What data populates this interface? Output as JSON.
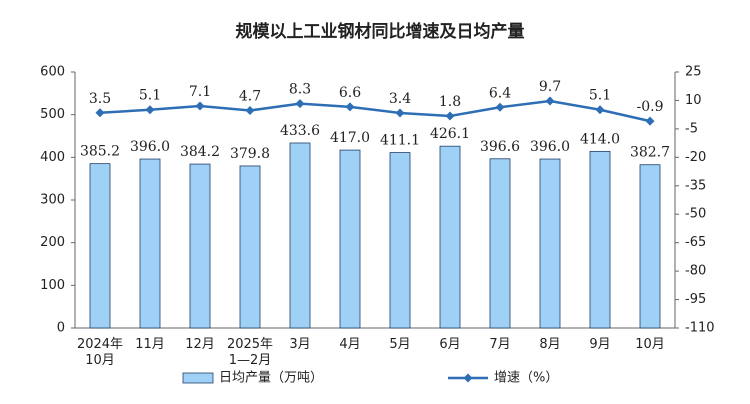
{
  "chart_data": {
    "type": "bar-line",
    "title": "规模以上工业钢材同比增速及日均产量",
    "categories": [
      "2024年\n10月",
      "11月",
      "12月",
      "2025年\n1—2月",
      "3月",
      "4月",
      "5月",
      "6月",
      "7月",
      "8月",
      "9月",
      "10月"
    ],
    "series": [
      {
        "name": "日均产量（万吨）",
        "type": "bar",
        "color": "#9fd0f5",
        "border": "#1f3f66",
        "values": [
          385.2,
          396.0,
          384.2,
          379.8,
          433.6,
          417.0,
          411.1,
          426.1,
          396.6,
          396.0,
          414.0,
          382.7
        ],
        "value_labels": [
          "385.2",
          "396.0",
          "384.2",
          "379.8",
          "433.6",
          "417.0",
          "411.1",
          "426.1",
          "396.6",
          "396.0",
          "414.0",
          "382.7"
        ]
      },
      {
        "name": "增速（%）",
        "type": "line",
        "axis": "y2",
        "color": "#2e6eb5",
        "values": [
          3.5,
          5.1,
          7.1,
          4.7,
          8.3,
          6.6,
          3.4,
          1.8,
          6.4,
          9.7,
          5.1,
          -0.9
        ]
      }
    ],
    "ylim": [
      0,
      600
    ],
    "yticks": [
      0,
      100,
      200,
      300,
      400,
      500,
      600
    ],
    "y2lim": [
      -110,
      25
    ],
    "y2ticks": [
      25,
      10,
      -5,
      -20,
      -35,
      -50,
      -65,
      -80,
      -95,
      -110
    ]
  }
}
